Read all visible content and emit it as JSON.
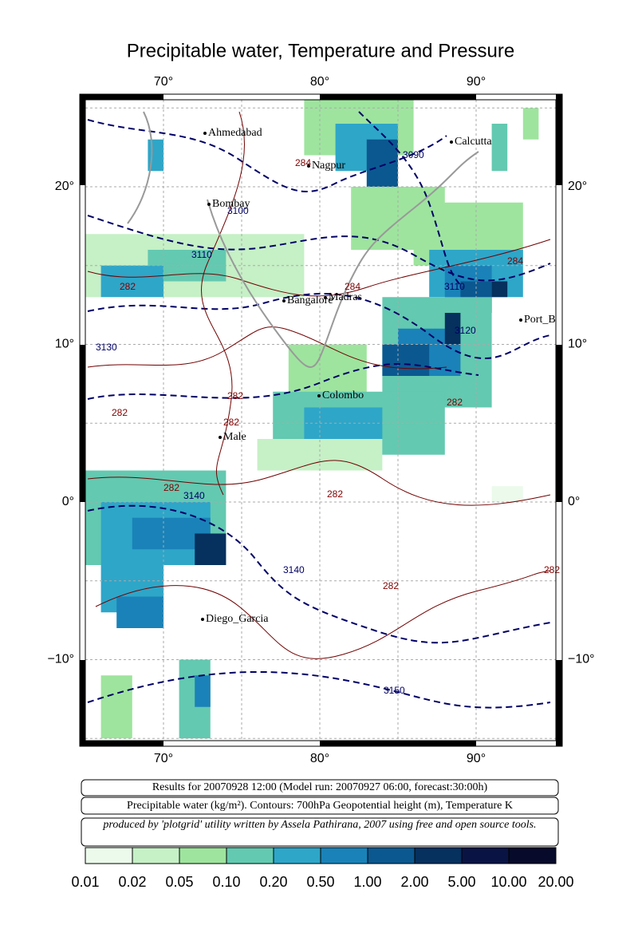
{
  "header": {
    "title": "Precipitable water, Temperature and Pressure"
  },
  "axes": {
    "lon_labels": [
      "70°",
      "80°",
      "90°"
    ],
    "lat_labels": [
      "20°",
      "10°",
      "0°",
      "−10°"
    ]
  },
  "cities": [
    "Ahmedabad",
    "Calcutta",
    "Nagpur",
    "Bombay",
    "Bangalore",
    "Madras",
    "Port_Blair",
    "Colombo",
    "Male",
    "Diego_Garcia"
  ],
  "contour_labels": {
    "height": [
      "3090",
      "3100",
      "3110",
      "3120",
      "3130",
      "3140",
      "3150"
    ],
    "temperature": [
      "284",
      "282"
    ]
  },
  "info": {
    "results": "Results for 20070928 12:00 (Model run: 20070927 06:00, forecast:30:00h)",
    "contours": "Precipitable water (kg/m²).  Contours: 700hPa Geopotential height (m), Temperature K",
    "credit": "produced by 'plotgrid' utility written by Assela Pathirana, 2007 using free and open source tools."
  },
  "colorbar": {
    "labels": [
      "0.01",
      "0.02",
      "0.05",
      "0.10",
      "0.20",
      "0.50",
      "1.00",
      "2.00",
      "5.00",
      "10.00",
      "20.00"
    ],
    "colors": [
      "#ecfaec",
      "#c6f0c6",
      "#9ee49e",
      "#63c9b0",
      "#2ea6c8",
      "#1a82b8",
      "#0b5890",
      "#06305e",
      "#0a1444",
      "#070a2a"
    ]
  }
}
